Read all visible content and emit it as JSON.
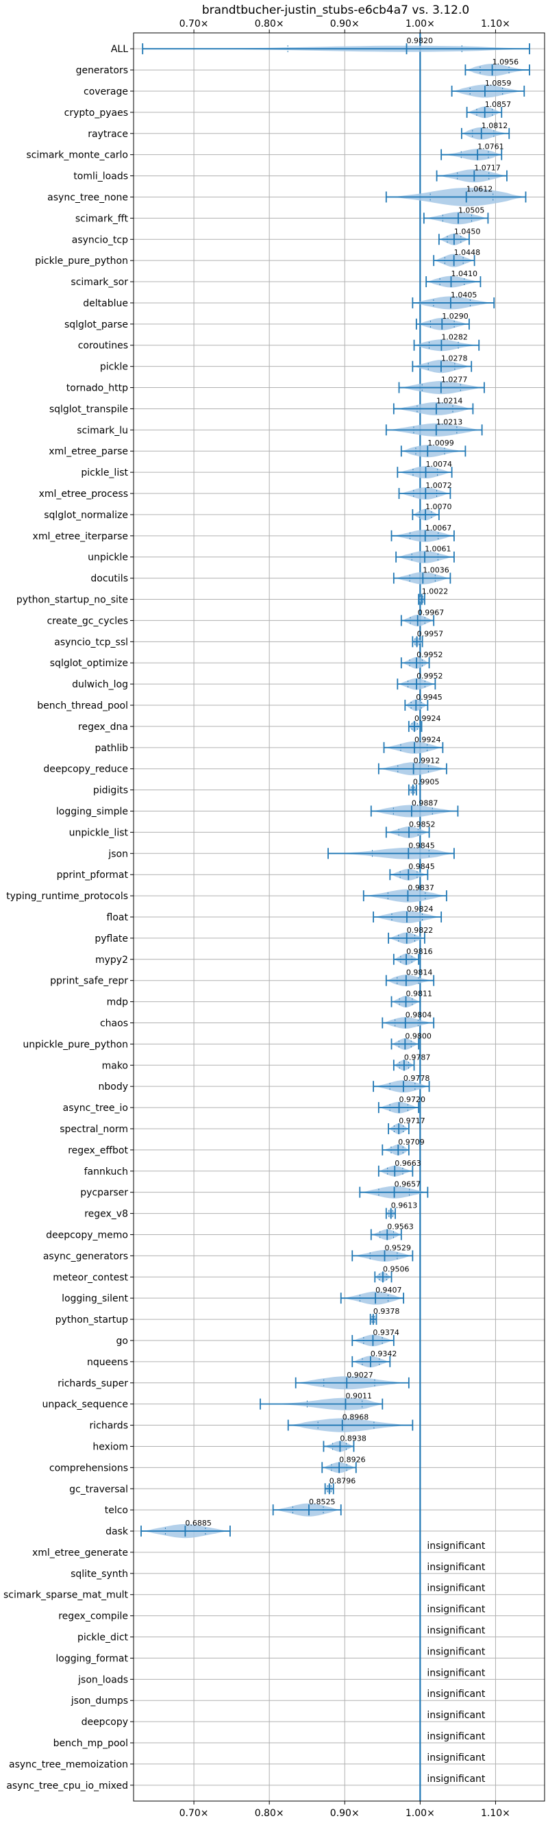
{
  "chart_data": {
    "type": "violin",
    "title": "brandtbucher-justin_stubs-e6cb4a7 vs. 3.12.0",
    "xlabel": "",
    "ylabel": "",
    "xlim": [
      0.62,
      1.165
    ],
    "x_ticks": [
      0.7,
      0.8,
      0.9,
      1.0,
      1.1
    ],
    "x_tick_labels": [
      "0.70×",
      "0.80×",
      "0.90×",
      "1.00×",
      "1.10×"
    ],
    "reference_line": 1.0,
    "grid": true,
    "colors": {
      "violin": "#a6c8e6",
      "line": "#1f77b4",
      "grid": "#b0b0b0"
    },
    "insignificant_label": "insignificant",
    "series": [
      {
        "name": "ALL",
        "value": 0.982,
        "label": "0.9820",
        "min": 0.632,
        "max": 1.145,
        "width": 0.16
      },
      {
        "name": "generators",
        "value": 1.0956,
        "label": "1.0956",
        "min": 1.06,
        "max": 1.145,
        "width": 0.32
      },
      {
        "name": "coverage",
        "value": 1.0859,
        "label": "1.0859",
        "min": 1.042,
        "max": 1.138,
        "width": 0.34
      },
      {
        "name": "crypto_pyaes",
        "value": 1.0857,
        "label": "1.0857",
        "min": 1.062,
        "max": 1.108,
        "width": 0.3
      },
      {
        "name": "raytrace",
        "value": 1.0812,
        "label": "1.0812",
        "min": 1.055,
        "max": 1.118,
        "width": 0.32
      },
      {
        "name": "scimark_monte_carlo",
        "value": 1.0761,
        "label": "1.0761",
        "min": 1.028,
        "max": 1.108,
        "width": 0.3
      },
      {
        "name": "tomli_loads",
        "value": 1.0717,
        "label": "1.0717",
        "min": 1.022,
        "max": 1.115,
        "width": 0.34
      },
      {
        "name": "async_tree_none",
        "value": 1.0612,
        "label": "1.0612",
        "min": 0.955,
        "max": 1.14,
        "width": 0.48
      },
      {
        "name": "scimark_fft",
        "value": 1.0505,
        "label": "1.0505",
        "min": 1.005,
        "max": 1.09,
        "width": 0.32
      },
      {
        "name": "asyncio_tcp",
        "value": 1.045,
        "label": "1.0450",
        "min": 1.025,
        "max": 1.065,
        "width": 0.3
      },
      {
        "name": "pickle_pure_python",
        "value": 1.0448,
        "label": "1.0448",
        "min": 1.018,
        "max": 1.072,
        "width": 0.34
      },
      {
        "name": "scimark_sor",
        "value": 1.041,
        "label": "1.0410",
        "min": 1.008,
        "max": 1.08,
        "width": 0.3
      },
      {
        "name": "deltablue",
        "value": 1.0405,
        "label": "1.0405",
        "min": 0.99,
        "max": 1.098,
        "width": 0.34
      },
      {
        "name": "sqlglot_parse",
        "value": 1.029,
        "label": "1.0290",
        "min": 0.995,
        "max": 1.065,
        "width": 0.32
      },
      {
        "name": "coroutines",
        "value": 1.0282,
        "label": "1.0282",
        "min": 0.992,
        "max": 1.078,
        "width": 0.3
      },
      {
        "name": "pickle",
        "value": 1.0278,
        "label": "1.0278",
        "min": 0.99,
        "max": 1.068,
        "width": 0.34
      },
      {
        "name": "tornado_http",
        "value": 1.0277,
        "label": "1.0277",
        "min": 0.972,
        "max": 1.085,
        "width": 0.34
      },
      {
        "name": "sqlglot_transpile",
        "value": 1.0214,
        "label": "1.0214",
        "min": 0.965,
        "max": 1.07,
        "width": 0.34
      },
      {
        "name": "scimark_lu",
        "value": 1.0213,
        "label": "1.0213",
        "min": 0.955,
        "max": 1.082,
        "width": 0.34
      },
      {
        "name": "xml_etree_parse",
        "value": 1.0099,
        "label": "1.0099",
        "min": 0.975,
        "max": 1.06,
        "width": 0.32
      },
      {
        "name": "pickle_list",
        "value": 1.0074,
        "label": "1.0074",
        "min": 0.97,
        "max": 1.042,
        "width": 0.32
      },
      {
        "name": "xml_etree_process",
        "value": 1.0072,
        "label": "1.0072",
        "min": 0.972,
        "max": 1.04,
        "width": 0.32
      },
      {
        "name": "sqlglot_normalize",
        "value": 1.007,
        "label": "1.0070",
        "min": 0.99,
        "max": 1.025,
        "width": 0.3
      },
      {
        "name": "xml_etree_iterparse",
        "value": 1.0067,
        "label": "1.0067",
        "min": 0.962,
        "max": 1.045,
        "width": 0.32
      },
      {
        "name": "unpickle",
        "value": 1.0061,
        "label": "1.0061",
        "min": 0.968,
        "max": 1.045,
        "width": 0.32
      },
      {
        "name": "docutils",
        "value": 1.0036,
        "label": "1.0036",
        "min": 0.965,
        "max": 1.04,
        "width": 0.32
      },
      {
        "name": "python_startup_no_site",
        "value": 1.0022,
        "label": "1.0022",
        "min": 0.998,
        "max": 1.006,
        "width": 0.24
      },
      {
        "name": "create_gc_cycles",
        "value": 0.9967,
        "label": "0.9967",
        "min": 0.975,
        "max": 1.018,
        "width": 0.3
      },
      {
        "name": "asyncio_tcp_ssl",
        "value": 0.9957,
        "label": "0.9957",
        "min": 0.99,
        "max": 1.003,
        "width": 0.24
      },
      {
        "name": "sqlglot_optimize",
        "value": 0.9952,
        "label": "0.9952",
        "min": 0.975,
        "max": 1.012,
        "width": 0.3
      },
      {
        "name": "dulwich_log",
        "value": 0.9952,
        "label": "0.9952",
        "min": 0.97,
        "max": 1.02,
        "width": 0.3
      },
      {
        "name": "bench_thread_pool",
        "value": 0.9945,
        "label": "0.9945",
        "min": 0.98,
        "max": 1.01,
        "width": 0.3
      },
      {
        "name": "regex_dna",
        "value": 0.9924,
        "label": "0.9924",
        "min": 0.985,
        "max": 1.002,
        "width": 0.26
      },
      {
        "name": "pathlib",
        "value": 0.9924,
        "label": "0.9924",
        "min": 0.952,
        "max": 1.03,
        "width": 0.32
      },
      {
        "name": "deepcopy_reduce",
        "value": 0.9912,
        "label": "0.9912",
        "min": 0.945,
        "max": 1.035,
        "width": 0.34
      },
      {
        "name": "pidigits",
        "value": 0.9905,
        "label": "0.9905",
        "min": 0.985,
        "max": 0.995,
        "width": 0.24
      },
      {
        "name": "logging_simple",
        "value": 0.9887,
        "label": "0.9887",
        "min": 0.935,
        "max": 1.05,
        "width": 0.32
      },
      {
        "name": "unpickle_list",
        "value": 0.9852,
        "label": "0.9852",
        "min": 0.955,
        "max": 1.012,
        "width": 0.3
      },
      {
        "name": "json",
        "value": 0.9845,
        "label": "0.9845",
        "min": 0.878,
        "max": 1.045,
        "width": 0.3
      },
      {
        "name": "pprint_pformat",
        "value": 0.9845,
        "label": "0.9845",
        "min": 0.96,
        "max": 1.01,
        "width": 0.3
      },
      {
        "name": "typing_runtime_protocols",
        "value": 0.9837,
        "label": "0.9837",
        "min": 0.925,
        "max": 1.035,
        "width": 0.34
      },
      {
        "name": "float",
        "value": 0.9824,
        "label": "0.9824",
        "min": 0.938,
        "max": 1.028,
        "width": 0.32
      },
      {
        "name": "pyflate",
        "value": 0.9822,
        "label": "0.9822",
        "min": 0.958,
        "max": 1.006,
        "width": 0.3
      },
      {
        "name": "mypy2",
        "value": 0.9816,
        "label": "0.9816",
        "min": 0.965,
        "max": 0.998,
        "width": 0.3
      },
      {
        "name": "pprint_safe_repr",
        "value": 0.9814,
        "label": "0.9814",
        "min": 0.955,
        "max": 1.018,
        "width": 0.3
      },
      {
        "name": "mdp",
        "value": 0.9811,
        "label": "0.9811",
        "min": 0.962,
        "max": 1.0,
        "width": 0.3
      },
      {
        "name": "chaos",
        "value": 0.9804,
        "label": "0.9804",
        "min": 0.95,
        "max": 1.018,
        "width": 0.3
      },
      {
        "name": "unpickle_pure_python",
        "value": 0.98,
        "label": "0.9800",
        "min": 0.962,
        "max": 0.998,
        "width": 0.3
      },
      {
        "name": "mako",
        "value": 0.9787,
        "label": "0.9787",
        "min": 0.965,
        "max": 0.992,
        "width": 0.28
      },
      {
        "name": "nbody",
        "value": 0.9778,
        "label": "0.9778",
        "min": 0.938,
        "max": 1.012,
        "width": 0.32
      },
      {
        "name": "async_tree_io",
        "value": 0.972,
        "label": "0.9720",
        "min": 0.945,
        "max": 0.998,
        "width": 0.3
      },
      {
        "name": "spectral_norm",
        "value": 0.9717,
        "label": "0.9717",
        "min": 0.958,
        "max": 0.985,
        "width": 0.28
      },
      {
        "name": "regex_effbot",
        "value": 0.9709,
        "label": "0.9709",
        "min": 0.95,
        "max": 0.985,
        "width": 0.28
      },
      {
        "name": "fannkuch",
        "value": 0.9663,
        "label": "0.9663",
        "min": 0.945,
        "max": 0.99,
        "width": 0.28
      },
      {
        "name": "pycparser",
        "value": 0.9657,
        "label": "0.9657",
        "min": 0.92,
        "max": 1.01,
        "width": 0.32
      },
      {
        "name": "regex_v8",
        "value": 0.9613,
        "label": "0.9613",
        "min": 0.955,
        "max": 0.967,
        "width": 0.24
      },
      {
        "name": "deepcopy_memo",
        "value": 0.9563,
        "label": "0.9563",
        "min": 0.935,
        "max": 0.975,
        "width": 0.28
      },
      {
        "name": "async_generators",
        "value": 0.9529,
        "label": "0.9529",
        "min": 0.91,
        "max": 0.99,
        "width": 0.3
      },
      {
        "name": "meteor_contest",
        "value": 0.9506,
        "label": "0.9506",
        "min": 0.94,
        "max": 0.962,
        "width": 0.26
      },
      {
        "name": "logging_silent",
        "value": 0.9407,
        "label": "0.9407",
        "min": 0.895,
        "max": 0.978,
        "width": 0.34
      },
      {
        "name": "python_startup",
        "value": 0.9378,
        "label": "0.9378",
        "min": 0.934,
        "max": 0.942,
        "width": 0.24
      },
      {
        "name": "go",
        "value": 0.9374,
        "label": "0.9374",
        "min": 0.91,
        "max": 0.965,
        "width": 0.3
      },
      {
        "name": "nqueens",
        "value": 0.9342,
        "label": "0.9342",
        "min": 0.91,
        "max": 0.96,
        "width": 0.3
      },
      {
        "name": "richards_super",
        "value": 0.9027,
        "label": "0.9027",
        "min": 0.835,
        "max": 0.985,
        "width": 0.34
      },
      {
        "name": "unpack_sequence",
        "value": 0.9011,
        "label": "0.9011",
        "min": 0.788,
        "max": 0.95,
        "width": 0.32
      },
      {
        "name": "richards",
        "value": 0.8968,
        "label": "0.8968",
        "min": 0.825,
        "max": 0.99,
        "width": 0.36
      },
      {
        "name": "hexiom",
        "value": 0.8938,
        "label": "0.8938",
        "min": 0.872,
        "max": 0.912,
        "width": 0.28
      },
      {
        "name": "comprehensions",
        "value": 0.8926,
        "label": "0.8926",
        "min": 0.87,
        "max": 0.915,
        "width": 0.28
      },
      {
        "name": "gc_traversal",
        "value": 0.8796,
        "label": "0.8796",
        "min": 0.874,
        "max": 0.885,
        "width": 0.24
      },
      {
        "name": "telco",
        "value": 0.8525,
        "label": "0.8525",
        "min": 0.805,
        "max": 0.895,
        "width": 0.34
      },
      {
        "name": "dask",
        "value": 0.6885,
        "label": "0.6885",
        "min": 0.63,
        "max": 0.748,
        "width": 0.36
      },
      {
        "name": "xml_etree_generate",
        "value": null,
        "label": "insignificant"
      },
      {
        "name": "sqlite_synth",
        "value": null,
        "label": "insignificant"
      },
      {
        "name": "scimark_sparse_mat_mult",
        "value": null,
        "label": "insignificant"
      },
      {
        "name": "regex_compile",
        "value": null,
        "label": "insignificant"
      },
      {
        "name": "pickle_dict",
        "value": null,
        "label": "insignificant"
      },
      {
        "name": "logging_format",
        "value": null,
        "label": "insignificant"
      },
      {
        "name": "json_loads",
        "value": null,
        "label": "insignificant"
      },
      {
        "name": "json_dumps",
        "value": null,
        "label": "insignificant"
      },
      {
        "name": "deepcopy",
        "value": null,
        "label": "insignificant"
      },
      {
        "name": "bench_mp_pool",
        "value": null,
        "label": "insignificant"
      },
      {
        "name": "async_tree_memoization",
        "value": null,
        "label": "insignificant"
      },
      {
        "name": "async_tree_cpu_io_mixed",
        "value": null,
        "label": "insignificant"
      }
    ]
  }
}
